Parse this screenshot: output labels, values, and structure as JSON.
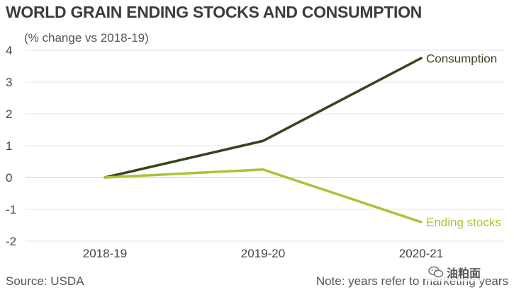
{
  "title": "WORLD GRAIN ENDING STOCKS AND CONSUMPTION",
  "source": "Source: USDA",
  "note": "Note: years refer to marketing years",
  "watermark": "油粕面",
  "chart_data": {
    "type": "line",
    "ylabel": "(% change vs 2018-19)",
    "categories": [
      "2018-19",
      "2019-20",
      "2020-21"
    ],
    "ylim": [
      -2,
      4
    ],
    "yticks": [
      "4",
      "3",
      "2",
      "1",
      "0",
      "-1",
      "-2"
    ],
    "grid": true,
    "series": [
      {
        "name": "Consumption",
        "values": [
          0,
          1.15,
          3.75
        ],
        "color": "#34451c"
      },
      {
        "name": "Ending stocks",
        "values": [
          0,
          0.25,
          -1.4
        ],
        "color": "#a4c639"
      }
    ]
  }
}
